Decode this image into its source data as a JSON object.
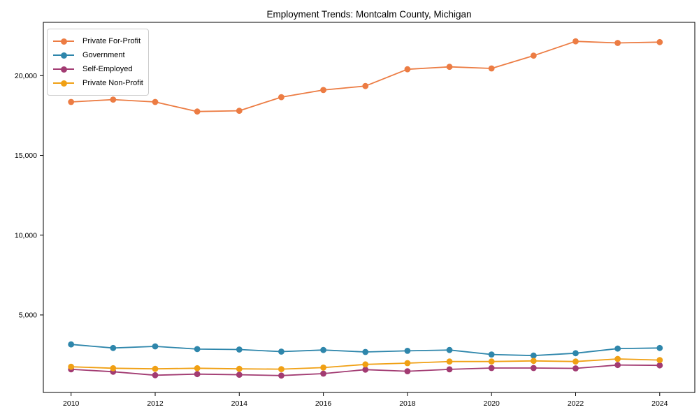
{
  "chart_data": {
    "type": "line",
    "title": "Employment Trends: Montcalm County, Michigan",
    "x": [
      2010,
      2011,
      2012,
      2013,
      2014,
      2015,
      2016,
      2017,
      2018,
      2019,
      2020,
      2021,
      2022,
      2023,
      2024
    ],
    "x_tick_labels": [
      "2010",
      "2012",
      "2014",
      "2016",
      "2018",
      "2020",
      "2022",
      "2024"
    ],
    "yticks": [
      5000,
      10000,
      15000,
      20000
    ],
    "ytick_labels": [
      "5,000",
      "10,000",
      "15,000",
      "20,000"
    ],
    "ylim": [
      140,
      23340
    ],
    "grid": false,
    "legend_position": "upper-left",
    "series": [
      {
        "name": "Private For-Profit",
        "color": "#EC7C43",
        "values": [
          18350,
          18500,
          18350,
          17750,
          17800,
          18650,
          19100,
          19350,
          20400,
          20550,
          20450,
          21250,
          22150,
          22050,
          22100
        ]
      },
      {
        "name": "Government",
        "color": "#2E86AB",
        "values": [
          3150,
          2930,
          3030,
          2860,
          2830,
          2700,
          2800,
          2680,
          2750,
          2800,
          2520,
          2450,
          2600,
          2890,
          2930
        ]
      },
      {
        "name": "Self-Employed",
        "color": "#A23B72",
        "values": [
          1590,
          1440,
          1220,
          1290,
          1250,
          1200,
          1320,
          1570,
          1470,
          1590,
          1670,
          1670,
          1650,
          1860,
          1840
        ]
      },
      {
        "name": "Private Non-Profit",
        "color": "#F0A014",
        "values": [
          1750,
          1660,
          1620,
          1660,
          1620,
          1600,
          1700,
          1900,
          1980,
          2080,
          2080,
          2120,
          2080,
          2240,
          2170
        ]
      }
    ]
  }
}
